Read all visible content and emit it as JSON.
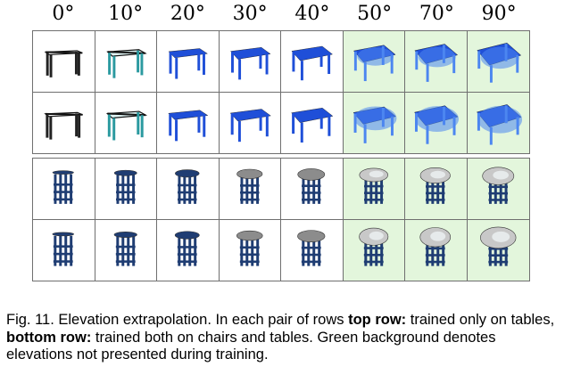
{
  "headers": [
    "0°",
    "10°",
    "20°",
    "30°",
    "40°",
    "50°",
    "70°",
    "90°"
  ],
  "green_start_index": 5,
  "colors": {
    "grid_line": "#6f6f6f",
    "green_background": "#e3f6dc",
    "table_blue": "#1f4fd8",
    "table_blue_light": "#4c86f0",
    "stool_dark": "#1f3d73",
    "stool_top": "#c8c8c8"
  },
  "groups": [
    {
      "object": "table",
      "rows": [
        "top row: trained only on tables",
        "bottom row: trained both on chairs and tables"
      ]
    },
    {
      "object": "stool",
      "rows": [
        "top row: trained only on tables",
        "bottom row: trained both on chairs and tables"
      ]
    }
  ],
  "caption": {
    "part1": "Fig. 11. Elevation extrapolation. In each pair of rows ",
    "bold1": "top row:",
    "part2": " trained only on tables, ",
    "bold2": "bottom row:",
    "part3": " trained both on chairs and tables. Green background denotes elevations not presented during training."
  }
}
